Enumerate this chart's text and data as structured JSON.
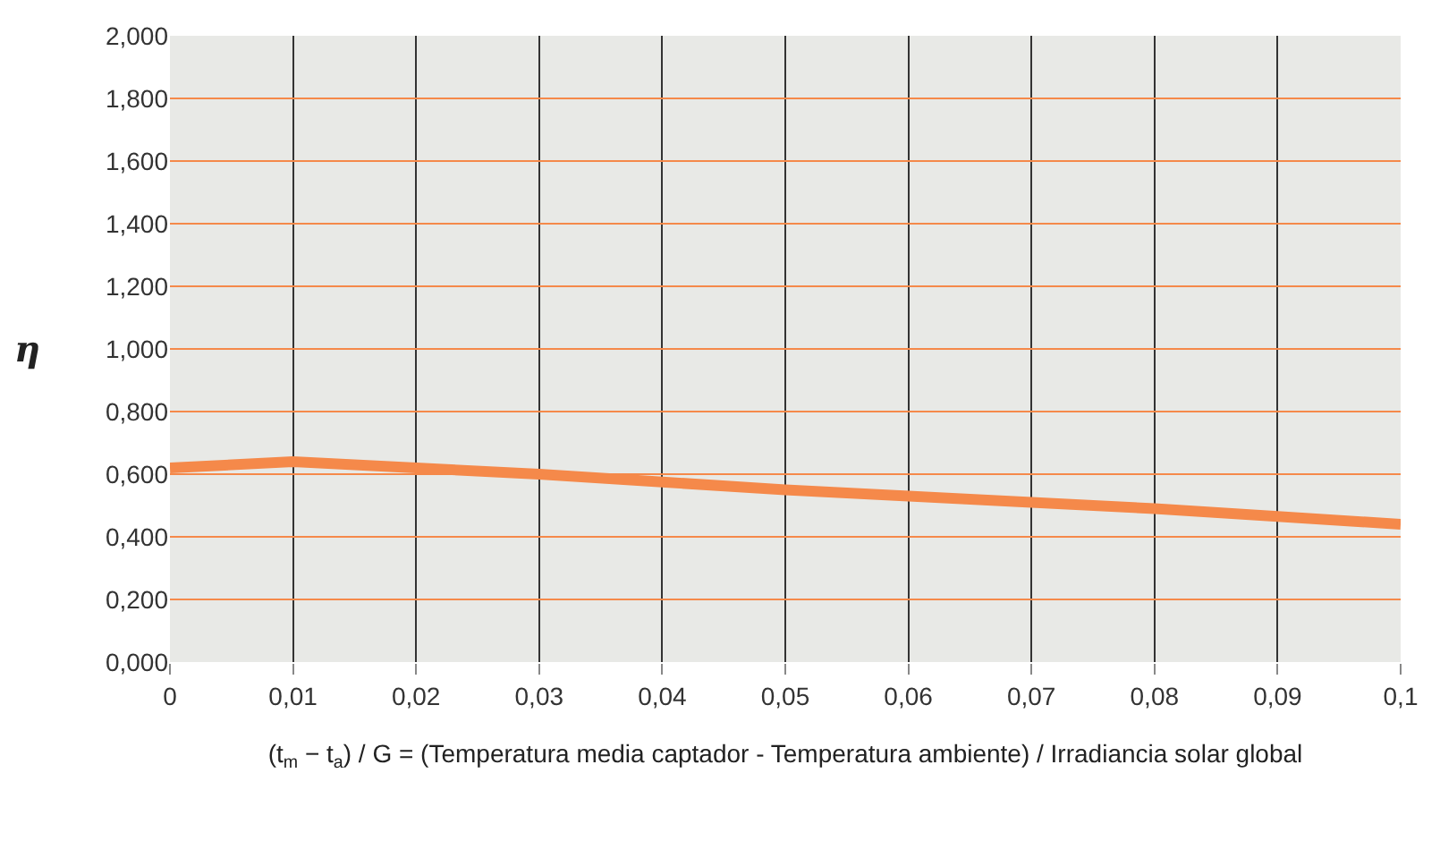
{
  "chart_data": {
    "type": "line",
    "x": [
      0,
      0.01,
      0.02,
      0.03,
      0.04,
      0.05,
      0.06,
      0.07,
      0.08,
      0.09,
      0.1
    ],
    "series": [
      {
        "color": "#f5894a",
        "values": [
          0.62,
          0.64,
          0.62,
          0.6,
          0.575,
          0.55,
          0.53,
          0.51,
          0.49,
          0.465,
          0.44
        ]
      }
    ],
    "xlim": [
      0,
      0.1
    ],
    "xticks": [
      0,
      {
        "value": 0.01,
        "label": "0,01"
      },
      {
        "value": 0.02,
        "label": "0,02"
      },
      {
        "value": 0.03,
        "label": "0,03"
      },
      {
        "value": 0.04,
        "label": "0,04"
      },
      {
        "value": 0.05,
        "label": "0,05"
      },
      {
        "value": 0.06,
        "label": "0,06"
      },
      {
        "value": 0.07,
        "label": "0,07"
      },
      {
        "value": 0.08,
        "label": "0,08"
      },
      {
        "value": 0.09,
        "label": "0,09"
      },
      {
        "value": 0.1,
        "label": "0,1"
      }
    ],
    "ylim": [
      0,
      2
    ],
    "yticks": [
      {
        "value": 0,
        "label": "0,000"
      },
      {
        "value": 0.2,
        "label": "0,200"
      },
      {
        "value": 0.4,
        "label": "0,400"
      },
      {
        "value": 0.6,
        "label": "0,600"
      },
      {
        "value": 0.8,
        "label": "0,800"
      },
      {
        "value": 1,
        "label": "1,000"
      },
      {
        "value": 1.2,
        "label": "1,200"
      },
      {
        "value": 1.4,
        "label": "1,400"
      },
      {
        "value": 1.6,
        "label": "1,600"
      },
      {
        "value": 1.8,
        "label": "1,800"
      },
      {
        "value": 2,
        "label": "2,000"
      }
    ],
    "ylabel": "η",
    "xlabel": "(t$_{m}$ − t$_{a}$) / G = (Temperatura media captador - Temperatura ambiente) / Irradiancia solar global",
    "grid": true,
    "marker": "none",
    "line_style": "solid"
  }
}
